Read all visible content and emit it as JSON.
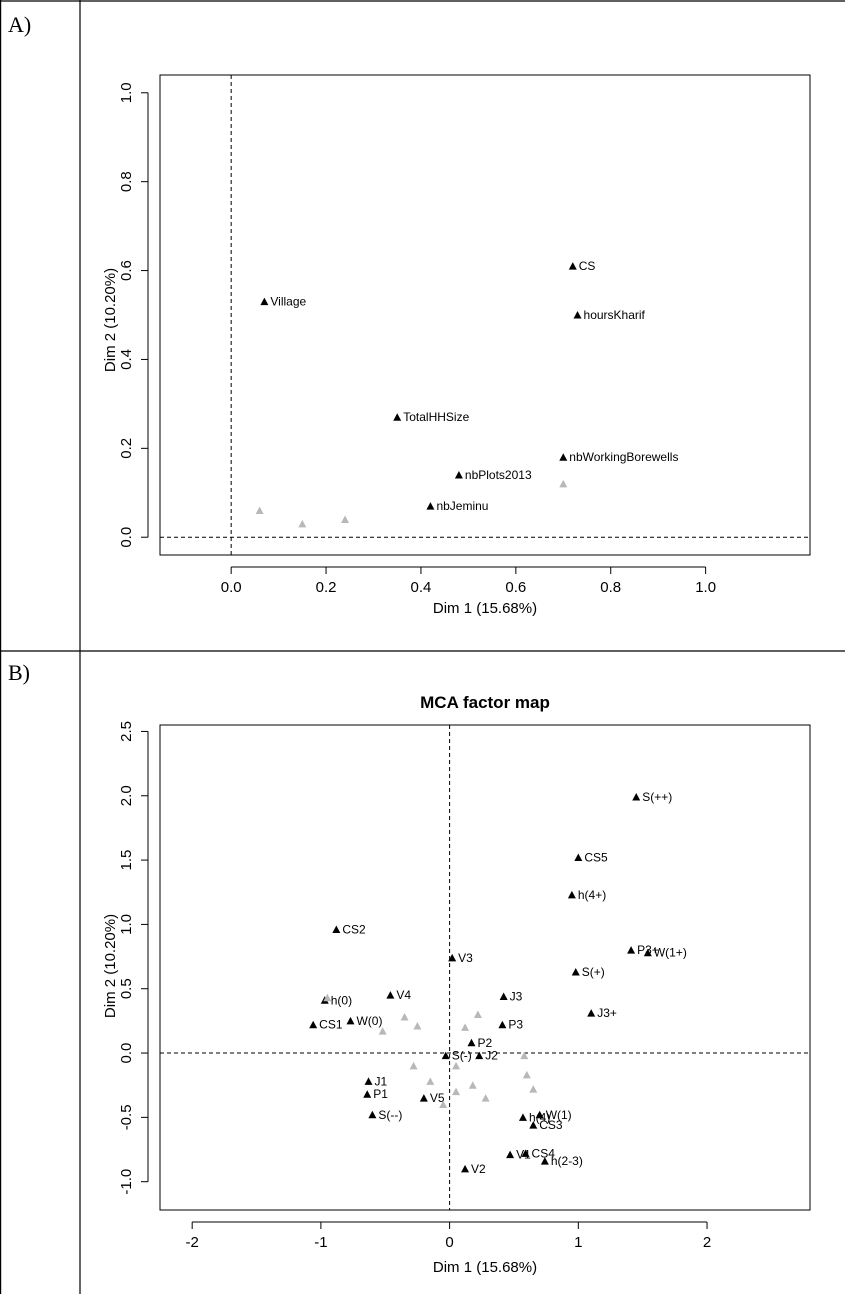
{
  "panels": [
    {
      "label": "A)"
    },
    {
      "label": "B)"
    }
  ],
  "colors": {
    "main": "#000000",
    "faint": "#b8b8b8",
    "border": "#000000"
  },
  "chart_data": [
    {
      "type": "scatter",
      "title": "",
      "xlabel": "Dim 1 (15.68%)",
      "ylabel": "Dim 2 (10.20%)",
      "xlim": [
        -0.15,
        1.22
      ],
      "ylim": [
        -0.04,
        1.04
      ],
      "xticks": [
        0.0,
        0.2,
        0.4,
        0.6,
        0.8,
        1.0
      ],
      "yticks": [
        0.0,
        0.2,
        0.4,
        0.6,
        0.8,
        1.0
      ],
      "tick_labels_x": [
        "0.0",
        "0.2",
        "0.4",
        "0.6",
        "0.8",
        "1.0"
      ],
      "tick_labels_y": [
        "0.0",
        "0.2",
        "0.4",
        "0.6",
        "0.8",
        "1.0"
      ],
      "reference_lines": {
        "x": 0,
        "y": 0,
        "style": "dashed"
      },
      "grid": false,
      "points": [
        {
          "label": "CS",
          "x": 0.72,
          "y": 0.61
        },
        {
          "label": "hoursKharif",
          "x": 0.73,
          "y": 0.5
        },
        {
          "label": "Village",
          "x": 0.07,
          "y": 0.53
        },
        {
          "label": "TotalHHSize",
          "x": 0.35,
          "y": 0.27
        },
        {
          "label": "nbWorkingBorewells",
          "x": 0.7,
          "y": 0.18
        },
        {
          "label": "nbPlots2013",
          "x": 0.48,
          "y": 0.14
        },
        {
          "label": "nbJeminu",
          "x": 0.42,
          "y": 0.07
        },
        {
          "label": "",
          "x": 0.7,
          "y": 0.12,
          "faint": true
        },
        {
          "label": "",
          "x": 0.06,
          "y": 0.06,
          "faint": true
        },
        {
          "label": "",
          "x": 0.24,
          "y": 0.04,
          "faint": true
        },
        {
          "label": "",
          "x": 0.15,
          "y": 0.03,
          "faint": true
        }
      ]
    },
    {
      "type": "scatter",
      "title": "MCA factor map",
      "xlabel": "Dim 1 (15.68%)",
      "ylabel": "Dim 2 (10.20%)",
      "xlim": [
        -2.25,
        2.8
      ],
      "ylim": [
        -1.22,
        2.55
      ],
      "xticks": [
        -2,
        -1,
        0,
        1,
        2
      ],
      "yticks": [
        -1.0,
        -0.5,
        0.0,
        0.5,
        1.0,
        1.5,
        2.0,
        2.5
      ],
      "tick_labels_x": [
        "-2",
        "-1",
        "0",
        "1",
        "2"
      ],
      "tick_labels_y": [
        "-1.0",
        "-0.5",
        "0.0",
        "0.5",
        "1.0",
        "1.5",
        "2.0",
        "2.5"
      ],
      "reference_lines": {
        "x": 0,
        "y": 0,
        "style": "dashed"
      },
      "grid": false,
      "points": [
        {
          "label": "S(++)",
          "x": 1.45,
          "y": 1.99
        },
        {
          "label": "CS5",
          "x": 1.0,
          "y": 1.52
        },
        {
          "label": "h(4+)",
          "x": 0.95,
          "y": 1.23
        },
        {
          "label": "CS2",
          "x": -0.88,
          "y": 0.96
        },
        {
          "label": "P3+",
          "x": 1.41,
          "y": 0.8
        },
        {
          "label": "W(1+)",
          "x": 1.54,
          "y": 0.78
        },
        {
          "label": "V3",
          "x": 0.02,
          "y": 0.74
        },
        {
          "label": "S(+)",
          "x": 0.98,
          "y": 0.63
        },
        {
          "label": "h(0)",
          "x": -0.97,
          "y": 0.41
        },
        {
          "label": "V4",
          "x": -0.46,
          "y": 0.45
        },
        {
          "label": "J3",
          "x": 0.42,
          "y": 0.44
        },
        {
          "label": "J3+",
          "x": 1.1,
          "y": 0.31
        },
        {
          "label": "CS1",
          "x": -1.06,
          "y": 0.22
        },
        {
          "label": "W(0)",
          "x": -0.77,
          "y": 0.25
        },
        {
          "label": "P3",
          "x": 0.41,
          "y": 0.22
        },
        {
          "label": "P2",
          "x": 0.17,
          "y": 0.08
        },
        {
          "label": "J2",
          "x": 0.23,
          "y": -0.02
        },
        {
          "label": "S(-)",
          "x": -0.03,
          "y": -0.02
        },
        {
          "label": "J1",
          "x": -0.63,
          "y": -0.22
        },
        {
          "label": "P1",
          "x": -0.64,
          "y": -0.32
        },
        {
          "label": "V5",
          "x": -0.2,
          "y": -0.35
        },
        {
          "label": "S(--)",
          "x": -0.6,
          "y": -0.48
        },
        {
          "label": "W(1)",
          "x": 0.7,
          "y": -0.48
        },
        {
          "label": "h(4)",
          "x": 0.57,
          "y": -0.5
        },
        {
          "label": "CS3",
          "x": 0.65,
          "y": -0.56
        },
        {
          "label": "V1",
          "x": 0.47,
          "y": -0.79
        },
        {
          "label": "CS4",
          "x": 0.59,
          "y": -0.78
        },
        {
          "label": "h(2-3)",
          "x": 0.74,
          "y": -0.84
        },
        {
          "label": "V2",
          "x": 0.12,
          "y": -0.9
        },
        {
          "label": "",
          "x": -0.95,
          "y": 0.43,
          "faint": true
        },
        {
          "label": "",
          "x": -0.35,
          "y": 0.28,
          "faint": true
        },
        {
          "label": "",
          "x": -0.25,
          "y": 0.21,
          "faint": true
        },
        {
          "label": "",
          "x": -0.52,
          "y": 0.17,
          "faint": true
        },
        {
          "label": "",
          "x": 0.22,
          "y": 0.3,
          "faint": true
        },
        {
          "label": "",
          "x": 0.12,
          "y": 0.2,
          "faint": true
        },
        {
          "label": "",
          "x": -0.28,
          "y": -0.1,
          "faint": true
        },
        {
          "label": "",
          "x": 0.05,
          "y": -0.1,
          "faint": true
        },
        {
          "label": "",
          "x": -0.15,
          "y": -0.22,
          "faint": true
        },
        {
          "label": "",
          "x": 0.18,
          "y": -0.25,
          "faint": true
        },
        {
          "label": "",
          "x": -0.05,
          "y": -0.4,
          "faint": true
        },
        {
          "label": "",
          "x": 0.58,
          "y": -0.02,
          "faint": true
        },
        {
          "label": "",
          "x": 0.6,
          "y": -0.17,
          "faint": true
        },
        {
          "label": "",
          "x": 0.65,
          "y": -0.28,
          "faint": true
        },
        {
          "label": "",
          "x": 0.28,
          "y": -0.35,
          "faint": true
        },
        {
          "label": "",
          "x": 0.05,
          "y": -0.3,
          "faint": true
        }
      ]
    }
  ]
}
